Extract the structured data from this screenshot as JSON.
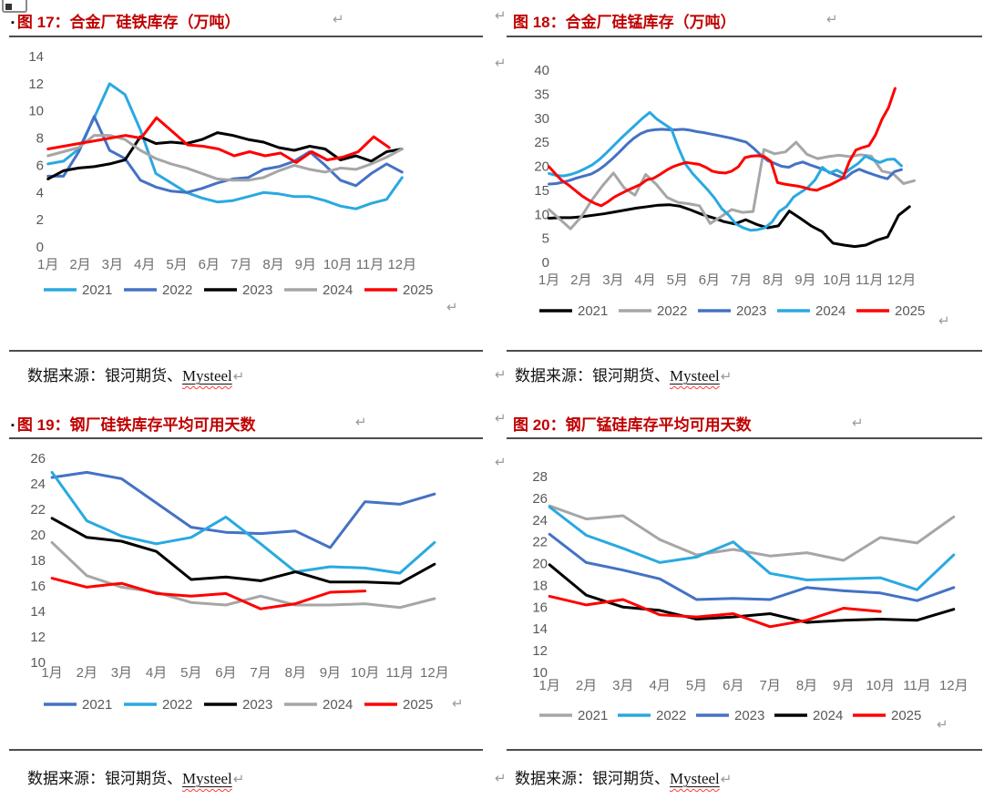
{
  "page": {
    "bullet": "▪",
    "return_mark": "↵",
    "source_prefix": "数据来源：银河期货、",
    "source_link": "Mysteel"
  },
  "colors": {
    "title_red": "#C00000",
    "cyan": "#29A9E1",
    "steel_blue": "#4472C4",
    "black": "#000000",
    "gray": "#A6A6A6",
    "red": "#FF0000",
    "rule_gray": "#4d4d4d",
    "axis_label_gray": "#595959"
  },
  "chart_data": [
    {
      "type": "line",
      "title": "图 17：合金厂硅铁库存（万吨）",
      "xlabel": "",
      "ylabel": "",
      "y_min": 0,
      "y_max": 14,
      "y_step": 2,
      "grid": false,
      "legend_position": "bottom",
      "monthly": false,
      "x_labels": [
        "1月",
        "2月",
        "3月",
        "4月",
        "5月",
        "6月",
        "7月",
        "8月",
        "9月",
        "10月",
        "11月",
        "12月"
      ],
      "series": [
        {
          "name": "2021",
          "color": "#29A9E1",
          "values": [
            6.1,
            6.3,
            7.2,
            9.5,
            12.0,
            11.2,
            8.6,
            5.4,
            4.7,
            4.0,
            3.6,
            3.3,
            3.4,
            3.7,
            4.0,
            3.9,
            3.7,
            3.7,
            3.4,
            3.0,
            2.8,
            3.2,
            3.5,
            5.1
          ]
        },
        {
          "name": "2022",
          "color": "#4472C4",
          "values": [
            5.2,
            5.2,
            7.0,
            9.6,
            7.1,
            6.5,
            4.9,
            4.4,
            4.1,
            4.0,
            4.3,
            4.7,
            5.0,
            5.1,
            5.7,
            5.9,
            6.3,
            7.0,
            6.0,
            4.9,
            4.5,
            5.4,
            6.1,
            5.5
          ]
        },
        {
          "name": "2023",
          "color": "#000000",
          "values": [
            5.0,
            5.6,
            5.8,
            5.9,
            6.1,
            6.4,
            8.1,
            7.6,
            7.7,
            7.6,
            7.9,
            8.4,
            8.2,
            7.9,
            7.7,
            7.3,
            7.1,
            7.4,
            7.2,
            6.4,
            6.7,
            6.3,
            7.0,
            7.2
          ]
        },
        {
          "name": "2024",
          "color": "#A6A6A6",
          "values": [
            6.7,
            7.0,
            7.3,
            8.2,
            8.2,
            7.9,
            7.1,
            6.5,
            6.1,
            5.8,
            5.4,
            5.0,
            4.9,
            4.9,
            5.1,
            5.6,
            6.0,
            5.7,
            5.5,
            5.8,
            5.7,
            6.1,
            6.6,
            7.2
          ]
        },
        {
          "name": "2025",
          "color": "#FF0000",
          "end": 11.1,
          "values": [
            7.2,
            7.4,
            7.6,
            7.8,
            8.0,
            8.2,
            8.0,
            9.5,
            8.5,
            7.5,
            7.4,
            7.2,
            6.7,
            7.0,
            6.7,
            6.9,
            6.2,
            7.0,
            6.4,
            6.6,
            7.0,
            8.1,
            7.3
          ]
        }
      ]
    },
    {
      "type": "line",
      "title": "图 18：合金厂硅锰库存（万吨）",
      "xlabel": "",
      "ylabel": "",
      "y_min": 0,
      "y_max": 40,
      "y_step": 5,
      "grid": false,
      "legend_position": "bottom",
      "monthly": false,
      "x_labels": [
        "1月",
        "2月",
        "3月",
        "4月",
        "5月",
        "6月",
        "7月",
        "8月",
        "9月",
        "10月",
        "11月",
        "12月"
      ],
      "series": [
        {
          "name": "2021",
          "color": "#000000",
          "end": 11.75,
          "values": [
            9.2,
            9.3,
            9.3,
            9.5,
            9.8,
            10.1,
            10.5,
            10.9,
            11.3,
            11.6,
            11.9,
            12.0,
            11.7,
            10.9,
            10.0,
            9.3,
            8.5,
            8.0,
            8.9,
            7.9,
            7.2,
            7.6,
            10.7,
            9.2,
            7.6,
            6.4,
            4.0,
            3.6,
            3.3,
            3.6,
            4.6,
            5.3,
            9.8,
            11.6
          ]
        },
        {
          "name": "2022",
          "color": "#A6A6A6",
          "end": 11.9,
          "values": [
            11.0,
            9.0,
            7.0,
            9.5,
            13.0,
            16.0,
            18.6,
            15.5,
            14.0,
            18.3,
            16.2,
            13.5,
            12.5,
            12.2,
            11.8,
            8.1,
            9.5,
            11.0,
            10.4,
            10.6,
            23.5,
            22.6,
            23.0,
            25.0,
            22.5,
            21.6,
            22.0,
            22.3,
            22.0,
            22.4,
            22.1,
            19.0,
            18.5,
            16.4,
            17.0
          ]
        },
        {
          "name": "2023",
          "color": "#4472C4",
          "values": [
            16.3,
            16.4,
            16.7,
            17.1,
            17.6,
            18.0,
            18.4,
            19.2,
            20.3,
            21.6,
            23.0,
            24.5,
            25.8,
            26.8,
            27.4,
            27.6,
            27.7,
            27.6,
            27.6,
            27.7,
            27.5,
            27.2,
            27.0,
            26.7,
            26.4,
            26.1,
            25.8,
            25.4,
            25.0,
            23.8,
            22.4,
            21.2,
            20.6,
            20.0,
            19.8,
            20.5,
            20.9,
            20.3,
            19.8,
            19.3,
            18.6,
            18.0,
            17.5,
            18.7,
            19.4,
            18.8,
            18.3,
            17.8,
            17.4,
            18.9,
            19.3
          ]
        },
        {
          "name": "2024",
          "color": "#29A9E1",
          "values": [
            18.5,
            18.1,
            18.0,
            18.3,
            18.8,
            19.5,
            20.3,
            21.4,
            22.8,
            24.3,
            25.8,
            27.2,
            28.6,
            30.0,
            31.2,
            29.8,
            28.8,
            27.8,
            23.8,
            20.4,
            18.4,
            16.8,
            15.2,
            13.4,
            11.2,
            9.8,
            8.0,
            7.2,
            6.7,
            6.8,
            7.2,
            8.4,
            10.6,
            11.6,
            13.6,
            14.6,
            15.6,
            17.2,
            19.8,
            18.6,
            19.2,
            18.4,
            19.6,
            20.6,
            22.1,
            21.4,
            20.8,
            21.4,
            21.5,
            20.1
          ]
        },
        {
          "name": "2025",
          "color": "#FF0000",
          "end": 11.3,
          "values": [
            19.9,
            18.4,
            17.0,
            16.1,
            15.0,
            13.9,
            13.0,
            12.3,
            11.8,
            12.6,
            13.6,
            14.3,
            15.0,
            15.6,
            16.2,
            17.2,
            17.5,
            18.3,
            19.2,
            19.9,
            20.4,
            20.8,
            20.6,
            20.4,
            19.8,
            19.0,
            18.7,
            18.6,
            19.0,
            19.9,
            21.8,
            22.1,
            22.2,
            22.0,
            21.0,
            16.6,
            16.3,
            16.1,
            15.9,
            15.6,
            15.2,
            15.0,
            15.6,
            16.1,
            16.8,
            17.5,
            21.0,
            23.4,
            23.9,
            24.3,
            26.5,
            29.8,
            32.2,
            36.2
          ]
        }
      ]
    },
    {
      "type": "line",
      "title": "图 19：钢厂硅铁库存平均可用天数",
      "xlabel": "",
      "ylabel": "",
      "y_min": 10,
      "y_max": 26,
      "y_step": 2,
      "grid": false,
      "legend_position": "bottom",
      "monthly": true,
      "x_labels": [
        "1月",
        "2月",
        "3月",
        "4月",
        "5月",
        "6月",
        "7月",
        "8月",
        "9月",
        "10月",
        "11月",
        "12月"
      ],
      "series": [
        {
          "name": "2021",
          "color": "#4472C4",
          "values": [
            24.5,
            24.9,
            24.4,
            22.5,
            20.6,
            20.2,
            20.1,
            20.3,
            19.0,
            22.6,
            22.4,
            23.2
          ]
        },
        {
          "name": "2022",
          "color": "#29A9E1",
          "values": [
            24.9,
            21.1,
            19.9,
            19.3,
            19.8,
            21.4,
            19.3,
            17.1,
            17.5,
            17.4,
            17.0,
            19.4
          ]
        },
        {
          "name": "2023",
          "color": "#000000",
          "values": [
            21.3,
            19.8,
            19.5,
            18.7,
            16.5,
            16.7,
            16.4,
            17.1,
            16.3,
            16.3,
            16.2,
            17.7
          ]
        },
        {
          "name": "2024",
          "color": "#A6A6A6",
          "values": [
            19.4,
            16.8,
            15.9,
            15.5,
            14.7,
            14.5,
            15.2,
            14.5,
            14.5,
            14.6,
            14.3,
            15.0
          ]
        },
        {
          "name": "2025",
          "color": "#FF0000",
          "values": [
            16.6,
            15.9,
            16.2,
            15.4,
            15.2,
            15.4,
            14.2,
            14.6,
            15.5,
            15.6
          ]
        }
      ]
    },
    {
      "type": "line",
      "title": "图 20：钢厂锰硅库存平均可用天数",
      "xlabel": "",
      "ylabel": "",
      "y_min": 10,
      "y_max": 28,
      "y_step": 2,
      "grid": false,
      "legend_position": "bottom",
      "monthly": true,
      "x_labels": [
        "1月",
        "2月",
        "3月",
        "4月",
        "5月",
        "6月",
        "7月",
        "8月",
        "9月",
        "10月",
        "11月",
        "12月"
      ],
      "series": [
        {
          "name": "2021",
          "color": "#A6A6A6",
          "values": [
            25.3,
            24.1,
            24.4,
            22.2,
            20.8,
            21.3,
            20.7,
            21.0,
            20.3,
            22.4,
            21.9,
            24.3
          ]
        },
        {
          "name": "2022",
          "color": "#29A9E1",
          "values": [
            25.2,
            22.6,
            21.4,
            20.1,
            20.6,
            22.0,
            19.1,
            18.5,
            18.6,
            18.7,
            17.6,
            20.8
          ]
        },
        {
          "name": "2023",
          "color": "#4472C4",
          "values": [
            22.7,
            20.1,
            19.4,
            18.6,
            16.7,
            16.8,
            16.7,
            17.8,
            17.5,
            17.3,
            16.6,
            17.8
          ]
        },
        {
          "name": "2024",
          "color": "#000000",
          "values": [
            19.9,
            17.1,
            16.0,
            15.7,
            14.9,
            15.1,
            15.4,
            14.6,
            14.8,
            14.9,
            14.8,
            15.8
          ]
        },
        {
          "name": "2025",
          "color": "#FF0000",
          "values": [
            17.0,
            16.2,
            16.7,
            15.3,
            15.1,
            15.4,
            14.2,
            14.8,
            15.9,
            15.6
          ]
        }
      ]
    }
  ]
}
